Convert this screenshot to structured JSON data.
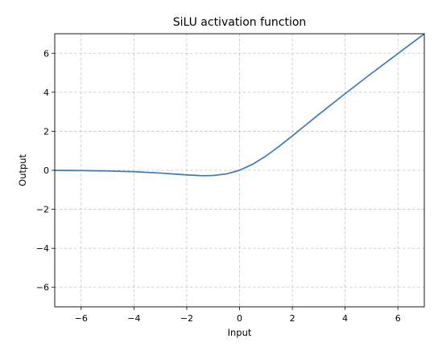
{
  "chart_data": {
    "type": "line",
    "title": "SiLU activation function",
    "xlabel": "Input",
    "ylabel": "Output",
    "xlim": [
      -7,
      7
    ],
    "ylim": [
      -7,
      7
    ],
    "xticks": [
      -6,
      -4,
      -2,
      0,
      2,
      4,
      6
    ],
    "yticks": [
      -6,
      -4,
      -2,
      0,
      2,
      4,
      6
    ],
    "xtick_labels": [
      "−6",
      "−4",
      "−2",
      "0",
      "2",
      "4",
      "6"
    ],
    "ytick_labels": [
      "−6",
      "−4",
      "−2",
      "0",
      "2",
      "4",
      "6"
    ],
    "grid": true,
    "series": [
      {
        "color": "#3a7ab8",
        "x": [
          -7,
          -6,
          -5,
          -4,
          -3,
          -2.5,
          -2,
          -1.5,
          -1.28,
          -1,
          -0.5,
          0,
          0.5,
          1,
          1.5,
          2,
          2.5,
          3,
          4,
          5,
          6,
          7
        ],
        "y": [
          -0.006,
          -0.015,
          -0.033,
          -0.072,
          -0.142,
          -0.189,
          -0.238,
          -0.274,
          -0.278,
          -0.269,
          -0.189,
          0,
          0.311,
          0.731,
          1.227,
          1.762,
          2.31,
          2.858,
          3.928,
          4.967,
          5.985,
          6.994
        ]
      }
    ]
  }
}
